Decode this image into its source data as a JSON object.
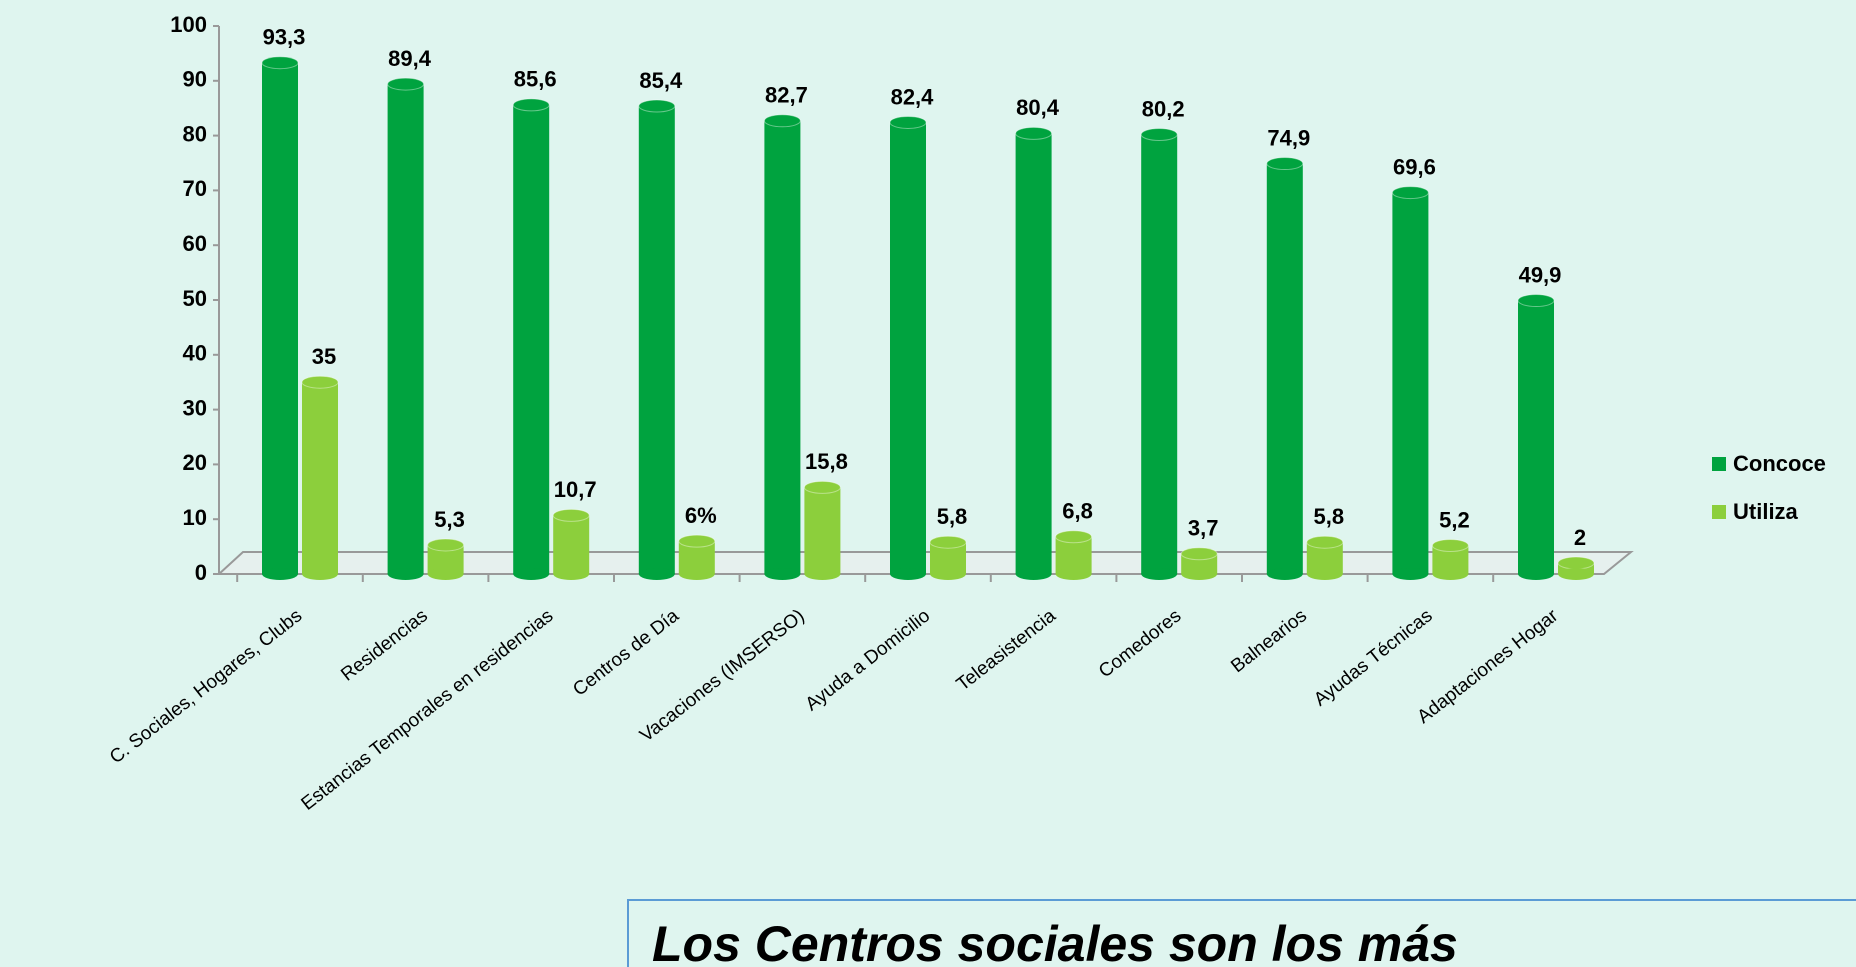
{
  "chart_data": {
    "type": "bar",
    "categories": [
      "C. Sociales, Hogares, Clubs",
      "Residencias",
      "Estancias Temporales en residencias",
      "Centros de Día",
      "Vacaciones (IMSERSO)",
      "Ayuda a Domicilio",
      "Teleasistencia",
      "Comedores",
      "Balnearios",
      "Ayudas Técnicas",
      "Adaptaciones Hogar"
    ],
    "series": [
      {
        "name": "Concoce",
        "color": "#00a33f",
        "values": [
          93.3,
          89.4,
          85.6,
          85.4,
          82.7,
          82.4,
          80.4,
          80.2,
          74.9,
          69.6,
          49.9
        ],
        "value_labels": [
          "93,3",
          "89,4",
          "85,6",
          "85,4",
          "82,7",
          "82,4",
          "80,4",
          "80,2",
          "74,9",
          "69,6",
          "49,9"
        ]
      },
      {
        "name": "Utiliza",
        "color": "#8ccf3c",
        "values": [
          35,
          5.3,
          10.7,
          6,
          15.8,
          5.8,
          6.8,
          3.7,
          5.8,
          5.2,
          2
        ],
        "value_labels": [
          "35",
          "5,3",
          "10,7",
          "6%",
          "15,8",
          "5,8",
          "6,8",
          "3,7",
          "5,8",
          "5,2",
          "2"
        ]
      }
    ],
    "ylim": [
      0,
      100
    ],
    "yticks": [
      0,
      10,
      20,
      30,
      40,
      50,
      60,
      70,
      80,
      90,
      100
    ],
    "legend": "right",
    "annotation": "Los  Centros sociales son los más"
  }
}
